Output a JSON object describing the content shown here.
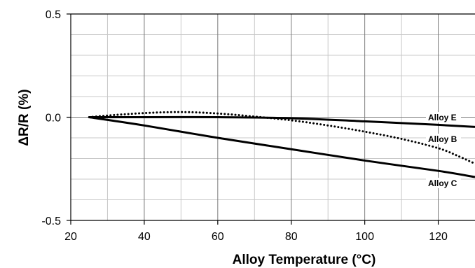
{
  "chart_data": {
    "type": "line",
    "title": "",
    "xlabel": "Alloy Temperature (°C)",
    "ylabel": "ΔR/R (%)",
    "xlim": [
      20,
      130
    ],
    "ylim": [
      -0.5,
      0.5
    ],
    "x_ticks": [
      20,
      40,
      60,
      80,
      100,
      120
    ],
    "y_ticks": [
      "0.5",
      "0.0",
      "-0.5"
    ],
    "grid": true,
    "series": [
      {
        "name": "Alloy E",
        "style": "solid",
        "color": "#000000",
        "x": [
          25,
          40,
          60,
          80,
          100,
          120,
          130
        ],
        "y": [
          0.0,
          0.0,
          0.0,
          -0.005,
          -0.02,
          -0.037,
          -0.047
        ]
      },
      {
        "name": "Alloy B",
        "style": "dotted",
        "color": "#000000",
        "x": [
          25,
          30,
          40,
          50,
          60,
          70,
          80,
          90,
          100,
          110,
          120,
          125,
          130
        ],
        "y": [
          0.0,
          0.008,
          0.02,
          0.025,
          0.018,
          0.003,
          -0.015,
          -0.04,
          -0.07,
          -0.105,
          -0.15,
          -0.185,
          -0.225
        ]
      },
      {
        "name": "Alloy C",
        "style": "solid",
        "color": "#000000",
        "x": [
          25,
          40,
          60,
          80,
          100,
          120,
          130
        ],
        "y": [
          0.0,
          -0.04,
          -0.1,
          -0.155,
          -0.21,
          -0.26,
          -0.29
        ]
      }
    ]
  }
}
